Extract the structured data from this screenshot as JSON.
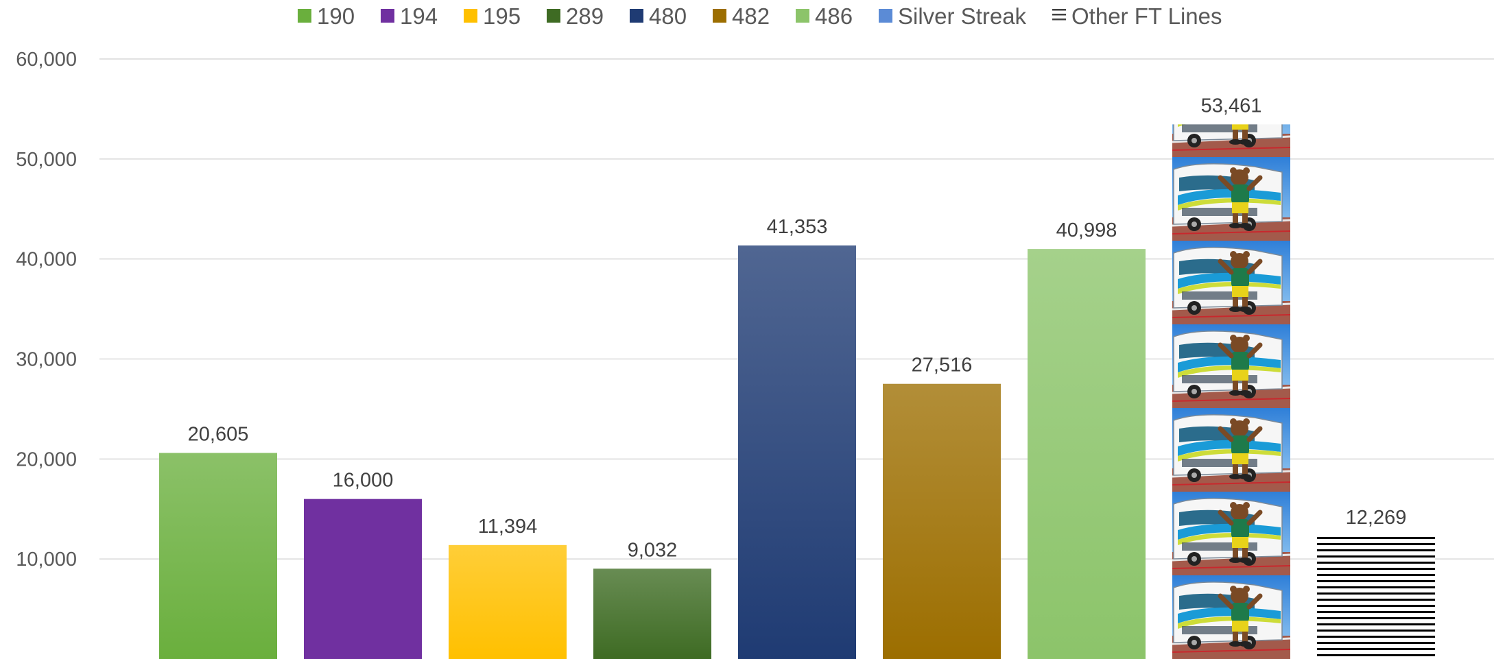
{
  "chart_data": {
    "type": "bar",
    "title": "",
    "xlabel": "",
    "ylabel": "",
    "ylim": [
      0,
      60000
    ],
    "yticks": [
      10000,
      20000,
      30000,
      40000,
      50000,
      60000
    ],
    "ytick_labels": [
      "10,000",
      "20,000",
      "30,000",
      "40,000",
      "50,000",
      "60,000"
    ],
    "grid": true,
    "legend_position": "top",
    "series": [
      {
        "name": "190",
        "value": 20605,
        "label": "20,605",
        "color": "#6aaf3d",
        "fill": "gradient"
      },
      {
        "name": "194",
        "value": 16000,
        "label": "16,000",
        "color": "#7030a0",
        "fill": "solid"
      },
      {
        "name": "195",
        "value": 11394,
        "label": "11,394",
        "color": "#ffc000",
        "fill": "gradient"
      },
      {
        "name": "289",
        "value": 9032,
        "label": "9,032",
        "color": "#3e6b23",
        "fill": "gradient"
      },
      {
        "name": "480",
        "value": 41353,
        "label": "41,353",
        "color": "#1f3b73",
        "fill": "gradient"
      },
      {
        "name": "482",
        "value": 27516,
        "label": "27,516",
        "color": "#9c6e00",
        "fill": "gradient"
      },
      {
        "name": "486",
        "value": 40998,
        "label": "40,998",
        "color": "#8cc46a",
        "fill": "gradient"
      },
      {
        "name": "Silver Streak",
        "value": 53461,
        "label": "53,461",
        "color": "#5b8bd6",
        "fill": "photo"
      },
      {
        "name": "Other FT Lines",
        "value": 12269,
        "label": "12,269",
        "color": "#000000",
        "fill": "stripes"
      }
    ]
  }
}
